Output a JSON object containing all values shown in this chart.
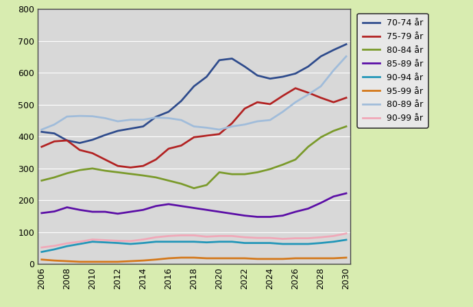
{
  "years": [
    2006,
    2007,
    2008,
    2009,
    2010,
    2011,
    2012,
    2013,
    2014,
    2015,
    2016,
    2017,
    2018,
    2019,
    2020,
    2021,
    2022,
    2023,
    2024,
    2025,
    2026,
    2027,
    2028,
    2029,
    2030
  ],
  "series": [
    {
      "label": "70-74 år",
      "color": "#2E4B8C",
      "linewidth": 2.0,
      "data": [
        415,
        410,
        388,
        380,
        390,
        405,
        418,
        425,
        432,
        462,
        478,
        512,
        558,
        588,
        640,
        645,
        620,
        592,
        582,
        588,
        598,
        620,
        652,
        672,
        690
      ]
    },
    {
      "label": "75-79 år",
      "color": "#B22222",
      "linewidth": 2.0,
      "data": [
        368,
        385,
        388,
        358,
        348,
        328,
        308,
        303,
        308,
        328,
        362,
        372,
        398,
        403,
        408,
        442,
        488,
        508,
        502,
        528,
        552,
        538,
        522,
        508,
        522
      ]
    },
    {
      "label": "80-84 år",
      "color": "#7A9A2A",
      "linewidth": 2.0,
      "data": [
        262,
        272,
        285,
        295,
        300,
        293,
        288,
        283,
        278,
        272,
        262,
        252,
        238,
        248,
        288,
        282,
        282,
        288,
        298,
        312,
        328,
        368,
        398,
        418,
        432
      ]
    },
    {
      "label": "85-89 år",
      "color": "#5B0EA6",
      "linewidth": 2.0,
      "data": [
        160,
        165,
        178,
        170,
        164,
        164,
        158,
        164,
        170,
        182,
        188,
        182,
        176,
        170,
        164,
        158,
        152,
        148,
        148,
        152,
        164,
        174,
        192,
        212,
        222
      ]
    },
    {
      "label": "90-94 år",
      "color": "#2296B8",
      "linewidth": 2.0,
      "data": [
        38,
        46,
        56,
        63,
        70,
        68,
        66,
        63,
        66,
        70,
        70,
        70,
        70,
        68,
        70,
        70,
        66,
        66,
        66,
        63,
        63,
        63,
        66,
        70,
        76
      ]
    },
    {
      "label": "95-99 år",
      "color": "#D4781A",
      "linewidth": 2.0,
      "data": [
        14,
        11,
        9,
        7,
        7,
        7,
        7,
        9,
        11,
        14,
        18,
        20,
        20,
        18,
        18,
        18,
        18,
        16,
        16,
        16,
        18,
        18,
        18,
        18,
        20
      ]
    },
    {
      "label": "80-89 år",
      "color": "#A0BCDA",
      "linewidth": 2.0,
      "data": [
        422,
        438,
        463,
        465,
        464,
        458,
        448,
        453,
        453,
        460,
        458,
        452,
        432,
        428,
        422,
        432,
        438,
        448,
        452,
        478,
        508,
        532,
        558,
        608,
        652
      ]
    },
    {
      "label": "90-99 år",
      "color": "#F0A8B8",
      "linewidth": 2.0,
      "data": [
        52,
        57,
        65,
        70,
        77,
        75,
        73,
        72,
        77,
        84,
        88,
        90,
        90,
        86,
        88,
        88,
        84,
        82,
        82,
        79,
        81,
        81,
        84,
        88,
        96
      ]
    }
  ],
  "ylim": [
    0,
    800
  ],
  "yticks": [
    0,
    100,
    200,
    300,
    400,
    500,
    600,
    700,
    800
  ],
  "xtick_years": [
    2006,
    2008,
    2010,
    2012,
    2014,
    2016,
    2018,
    2020,
    2022,
    2024,
    2026,
    2028,
    2030
  ],
  "background_color": "#d8ecb0",
  "plot_bg_color": "#d8d8d8",
  "legend_fontsize": 9,
  "tick_fontsize": 9,
  "fig_width": 6.9,
  "fig_height": 4.48,
  "dpi": 100
}
